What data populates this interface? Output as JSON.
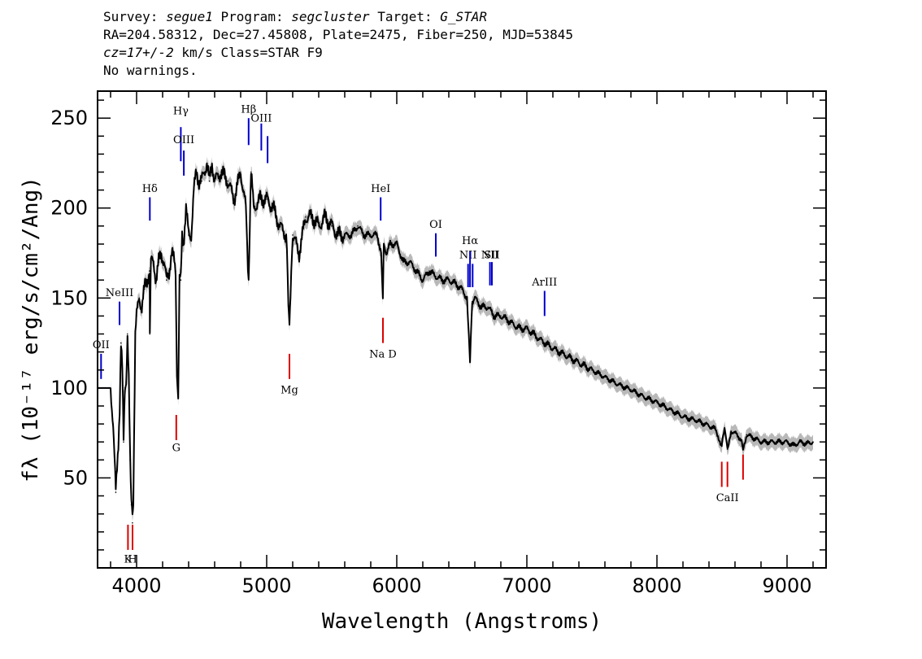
{
  "header": {
    "line1": {
      "survey_label": "Survey:",
      "survey": "segue1",
      "program_label": "Program:",
      "program": "segcluster",
      "target_label": "Target:",
      "target": "G_STAR"
    },
    "line2": "RA=204.58312, Dec=27.45808, Plate=2475, Fiber=250, MJD=53845",
    "line3": {
      "cz": "cz=17+/-2",
      "rest": "km/s Class=STAR F9"
    },
    "line4": "No warnings."
  },
  "chart_data": {
    "type": "line",
    "xlabel": "Wavelength (Angstroms)",
    "ylabel": "fλ (10⁻¹⁷ erg/s/cm²/Ang)",
    "xlim": [
      3700,
      9300
    ],
    "ylim": [
      0,
      265
    ],
    "xticks": [
      4000,
      5000,
      6000,
      7000,
      8000,
      9000
    ],
    "yticks": [
      50,
      100,
      150,
      200,
      250
    ],
    "colors": {
      "spectrum": "#000000",
      "error_band": "#b8b8b8",
      "emission_line": "#0000cc",
      "absorption_line": "#dd0000"
    },
    "series": [
      {
        "x": [
          3800,
          3820,
          3840,
          3850,
          3860,
          3870,
          3880,
          3890,
          3900,
          3910,
          3920,
          3930,
          3940,
          3950,
          3960,
          3968,
          3975,
          3990,
          4000,
          4020,
          4040,
          4060,
          4080,
          4100,
          4102,
          4110,
          4130,
          4150,
          4170,
          4190,
          4210,
          4230,
          4250,
          4270,
          4290,
          4300,
          4310,
          4320,
          4330,
          4340,
          4350,
          4360,
          4380,
          4400,
          4420,
          4440,
          4460,
          4480,
          4500,
          4520,
          4540,
          4560,
          4580,
          4600,
          4650,
          4700,
          4750,
          4800,
          4820,
          4840,
          4861,
          4880,
          4900,
          4950,
          5000,
          5050,
          5100,
          5150,
          5167,
          5175,
          5183,
          5200,
          5250,
          5300,
          5350,
          5400,
          5450,
          5500,
          5550,
          5600,
          5650,
          5700,
          5750,
          5800,
          5850,
          5880,
          5893,
          5900,
          5920,
          5950,
          6000,
          6050,
          6100,
          6150,
          6200,
          6250,
          6300,
          6350,
          6400,
          6450,
          6500,
          6540,
          6563,
          6580,
          6600,
          6650,
          6700,
          6750,
          6800,
          6850,
          6900,
          6950,
          7000,
          7100,
          7200,
          7300,
          7400,
          7500,
          7600,
          7700,
          7800,
          7900,
          8000,
          8100,
          8200,
          8300,
          8400,
          8450,
          8498,
          8520,
          8542,
          8570,
          8600,
          8640,
          8662,
          8690,
          8750,
          8800,
          8850,
          8900,
          8950,
          9000,
          9050,
          9100,
          9150,
          9200
        ],
        "values": [
          100,
          80,
          42,
          55,
          70,
          90,
          125,
          110,
          70,
          100,
          105,
          130,
          105,
          60,
          35,
          25,
          40,
          130,
          140,
          150,
          145,
          155,
          160,
          165,
          130,
          170,
          170,
          160,
          170,
          175,
          170,
          160,
          165,
          175,
          170,
          165,
          110,
          95,
          160,
          160,
          185,
          180,
          200,
          185,
          185,
          210,
          220,
          215,
          215,
          220,
          225,
          215,
          225,
          215,
          220,
          215,
          205,
          220,
          210,
          200,
          160,
          220,
          200,
          205,
          205,
          200,
          190,
          185,
          150,
          135,
          150,
          185,
          175,
          195,
          195,
          190,
          195,
          190,
          185,
          185,
          185,
          190,
          185,
          185,
          185,
          175,
          150,
          180,
          175,
          180,
          180,
          170,
          170,
          165,
          160,
          165,
          162,
          160,
          160,
          158,
          155,
          150,
          115,
          148,
          150,
          145,
          145,
          140,
          140,
          138,
          135,
          133,
          133,
          127,
          122,
          118,
          114,
          110,
          106,
          102,
          99,
          95,
          92,
          88,
          84,
          82,
          79,
          77,
          68,
          78,
          66,
          76,
          75,
          72,
          67,
          74,
          72,
          70,
          70,
          70,
          70,
          70,
          68,
          70,
          69,
          70
        ]
      }
    ],
    "emission_lines": [
      {
        "label": "OII",
        "x": 3727,
        "y_bottom": 105,
        "y_top": 119,
        "label_y": 122
      },
      {
        "label": "NeIII",
        "x": 3869,
        "y_bottom": 135,
        "y_top": 148,
        "label_y": 151
      },
      {
        "label": "Hδ",
        "x": 4102,
        "y_bottom": 193,
        "y_top": 206,
        "label_y": 209
      },
      {
        "label": "Hγ",
        "x": 4340,
        "y_bottom": 226,
        "y_top": 245,
        "label_y": 252
      },
      {
        "label": "OIII",
        "x": 4363,
        "y_bottom": 218,
        "y_top": 232,
        "label_y": 236
      },
      {
        "label": "Hβ",
        "x": 4861,
        "y_bottom": 235,
        "y_top": 250,
        "label_y": 253
      },
      {
        "label": "OIII",
        "x": 4959,
        "y_bottom": 232,
        "y_top": 247,
        "label_y": 248
      },
      {
        "label": "",
        "x": 5007,
        "y_bottom": 225,
        "y_top": 240,
        "label_y": 0
      },
      {
        "label": "HeI",
        "x": 5876,
        "y_bottom": 193,
        "y_top": 206,
        "label_y": 209
      },
      {
        "label": "OI",
        "x": 6300,
        "y_bottom": 173,
        "y_top": 186,
        "label_y": 189
      },
      {
        "label": "NII",
        "x": 6548,
        "y_bottom": 156,
        "y_top": 169,
        "label_y": 172
      },
      {
        "label": "Hα",
        "x": 6563,
        "y_bottom": 156,
        "y_top": 176,
        "label_y": 180
      },
      {
        "label": "",
        "x": 6583,
        "y_bottom": 156,
        "y_top": 169,
        "label_y": 0
      },
      {
        "label": "NII",
        "x": 6716,
        "y_bottom": 157,
        "y_top": 170,
        "label_y": 172
      },
      {
        "label": "SII",
        "x": 6731,
        "y_bottom": 157,
        "y_top": 170,
        "label_y": 172
      },
      {
        "label": "ArIII",
        "x": 7136,
        "y_bottom": 140,
        "y_top": 154,
        "label_y": 157
      }
    ],
    "absorption_lines": [
      {
        "label": "K",
        "x": 3934,
        "y_bottom": 10,
        "y_top": 24,
        "label_y": 3
      },
      {
        "label": "H",
        "x": 3969,
        "y_bottom": 10,
        "y_top": 24,
        "label_y": 3
      },
      {
        "label": "G",
        "x": 4305,
        "y_bottom": 71,
        "y_top": 85,
        "label_y": 65
      },
      {
        "label": "Mg",
        "x": 5175,
        "y_bottom": 105,
        "y_top": 119,
        "label_y": 97
      },
      {
        "label": "Na D",
        "x": 5894,
        "y_bottom": 125,
        "y_top": 139,
        "label_y": 117
      },
      {
        "label": "",
        "x": 8498,
        "y_bottom": 45,
        "y_top": 59,
        "label_y": 0
      },
      {
        "label": "CaII",
        "x": 8542,
        "y_bottom": 45,
        "y_top": 59,
        "label_y": 37
      },
      {
        "label": "",
        "x": 8662,
        "y_bottom": 49,
        "y_top": 63,
        "label_y": 0
      }
    ]
  }
}
